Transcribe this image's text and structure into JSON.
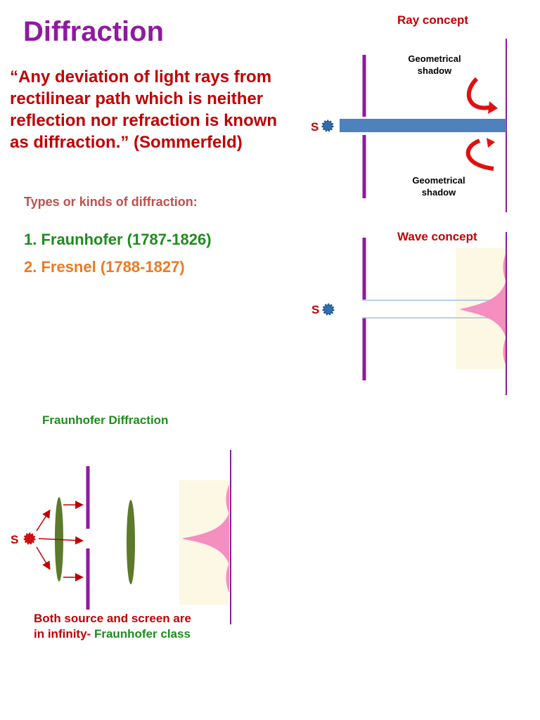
{
  "title": "Diffraction",
  "definition": {
    "lines": [
      "“Any deviation of light rays from",
      "rectilinear path which is neither",
      "reflection nor refraction is known",
      "as diffraction.” (Sommerfeld)"
    ]
  },
  "types": {
    "heading": "Types or kinds of diffraction:",
    "items": [
      "1. Fraunhofer (1787-1826)",
      "2. Fresnel (1788-1827)"
    ]
  },
  "ray_diagram": {
    "title": "Ray concept",
    "source": "S",
    "upper_shadow": [
      "Geometrical",
      "shadow"
    ],
    "lower_shadow": [
      "Geometrical",
      "shadow"
    ]
  },
  "wave_diagram": {
    "title": "Wave concept",
    "source": "S"
  },
  "fraunhofer_diagram": {
    "title": "Fraunhofer Diffraction",
    "source": "S",
    "caption_line1": "Both source and screen are",
    "caption_line2_start": "in infinity- ",
    "caption_line2_end": "Fraunhofer class"
  }
}
